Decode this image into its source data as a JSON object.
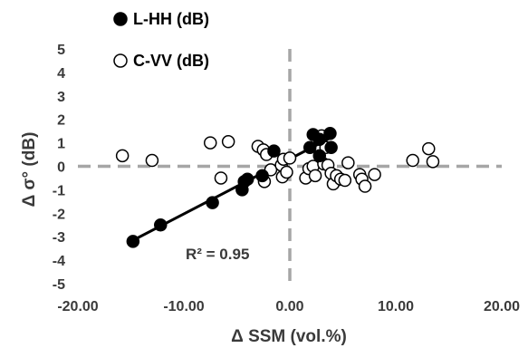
{
  "chart_data": {
    "type": "scatter",
    "xlabel": "Δ SSM (vol.%)",
    "ylabel": "Δ σ° (dB)",
    "xlim": [
      -20,
      20
    ],
    "ylim": [
      -5,
      5
    ],
    "xticks": [
      "-20.00",
      "-10.00",
      "0.00",
      "10.00",
      "20.00"
    ],
    "yticks": [
      "5",
      "4",
      "3",
      "2",
      "1",
      "0",
      "-1",
      "-2",
      "-3",
      "-4",
      "-5"
    ],
    "grid": false,
    "reference_lines": {
      "x": 0,
      "y": 0,
      "style": "dashed",
      "color": "#a6a6a6"
    },
    "legend": {
      "placement": "top-left"
    },
    "annotation": "R² = 0.95",
    "series": [
      {
        "name": "L-HH (dB)",
        "marker": "filled-circle",
        "color": "#000000",
        "points": [
          [
            -14.8,
            -3.2
          ],
          [
            -12.2,
            -2.5
          ],
          [
            -7.3,
            -1.55
          ],
          [
            -4.5,
            -1.0
          ],
          [
            -4.3,
            -0.65
          ],
          [
            -4.0,
            -0.55
          ],
          [
            -2.6,
            -0.4
          ],
          [
            -1.5,
            0.65
          ],
          [
            1.9,
            0.8
          ],
          [
            2.2,
            1.35
          ],
          [
            2.8,
            1.15
          ],
          [
            2.8,
            0.45
          ],
          [
            3.8,
            1.4
          ],
          [
            3.9,
            0.8
          ]
        ],
        "fit": {
          "x": [
            -15,
            4
          ],
          "y": [
            -3.2,
            1.25
          ]
        }
      },
      {
        "name": "C-VV (dB)",
        "marker": "open-circle",
        "color": "#000000",
        "points": [
          [
            -15.8,
            0.45
          ],
          [
            -13.0,
            0.25
          ],
          [
            -7.5,
            1.0
          ],
          [
            -5.8,
            1.05
          ],
          [
            -6.5,
            -0.5
          ],
          [
            -3.0,
            0.85
          ],
          [
            -2.5,
            0.7
          ],
          [
            -2.2,
            0.5
          ],
          [
            -2.4,
            -0.65
          ],
          [
            -1.8,
            -0.15
          ],
          [
            -0.8,
            0.05
          ],
          [
            -0.7,
            -0.45
          ],
          [
            -0.6,
            0.3
          ],
          [
            -0.3,
            -0.25
          ],
          [
            0.0,
            0.35
          ],
          [
            1.5,
            -0.5
          ],
          [
            1.8,
            -0.1
          ],
          [
            2.2,
            0.0
          ],
          [
            2.4,
            -0.4
          ],
          [
            3.0,
            1.3
          ],
          [
            3.2,
            0.1
          ],
          [
            3.4,
            0.8
          ],
          [
            3.6,
            0.05
          ],
          [
            3.9,
            -0.3
          ],
          [
            4.1,
            -0.75
          ],
          [
            4.4,
            -0.4
          ],
          [
            4.8,
            -0.55
          ],
          [
            5.2,
            -0.6
          ],
          [
            5.5,
            0.15
          ],
          [
            6.6,
            -0.35
          ],
          [
            6.8,
            -0.55
          ],
          [
            7.1,
            -0.85
          ],
          [
            8.0,
            -0.35
          ],
          [
            11.6,
            0.25
          ],
          [
            13.1,
            0.75
          ],
          [
            13.5,
            0.2
          ]
        ]
      }
    ]
  }
}
